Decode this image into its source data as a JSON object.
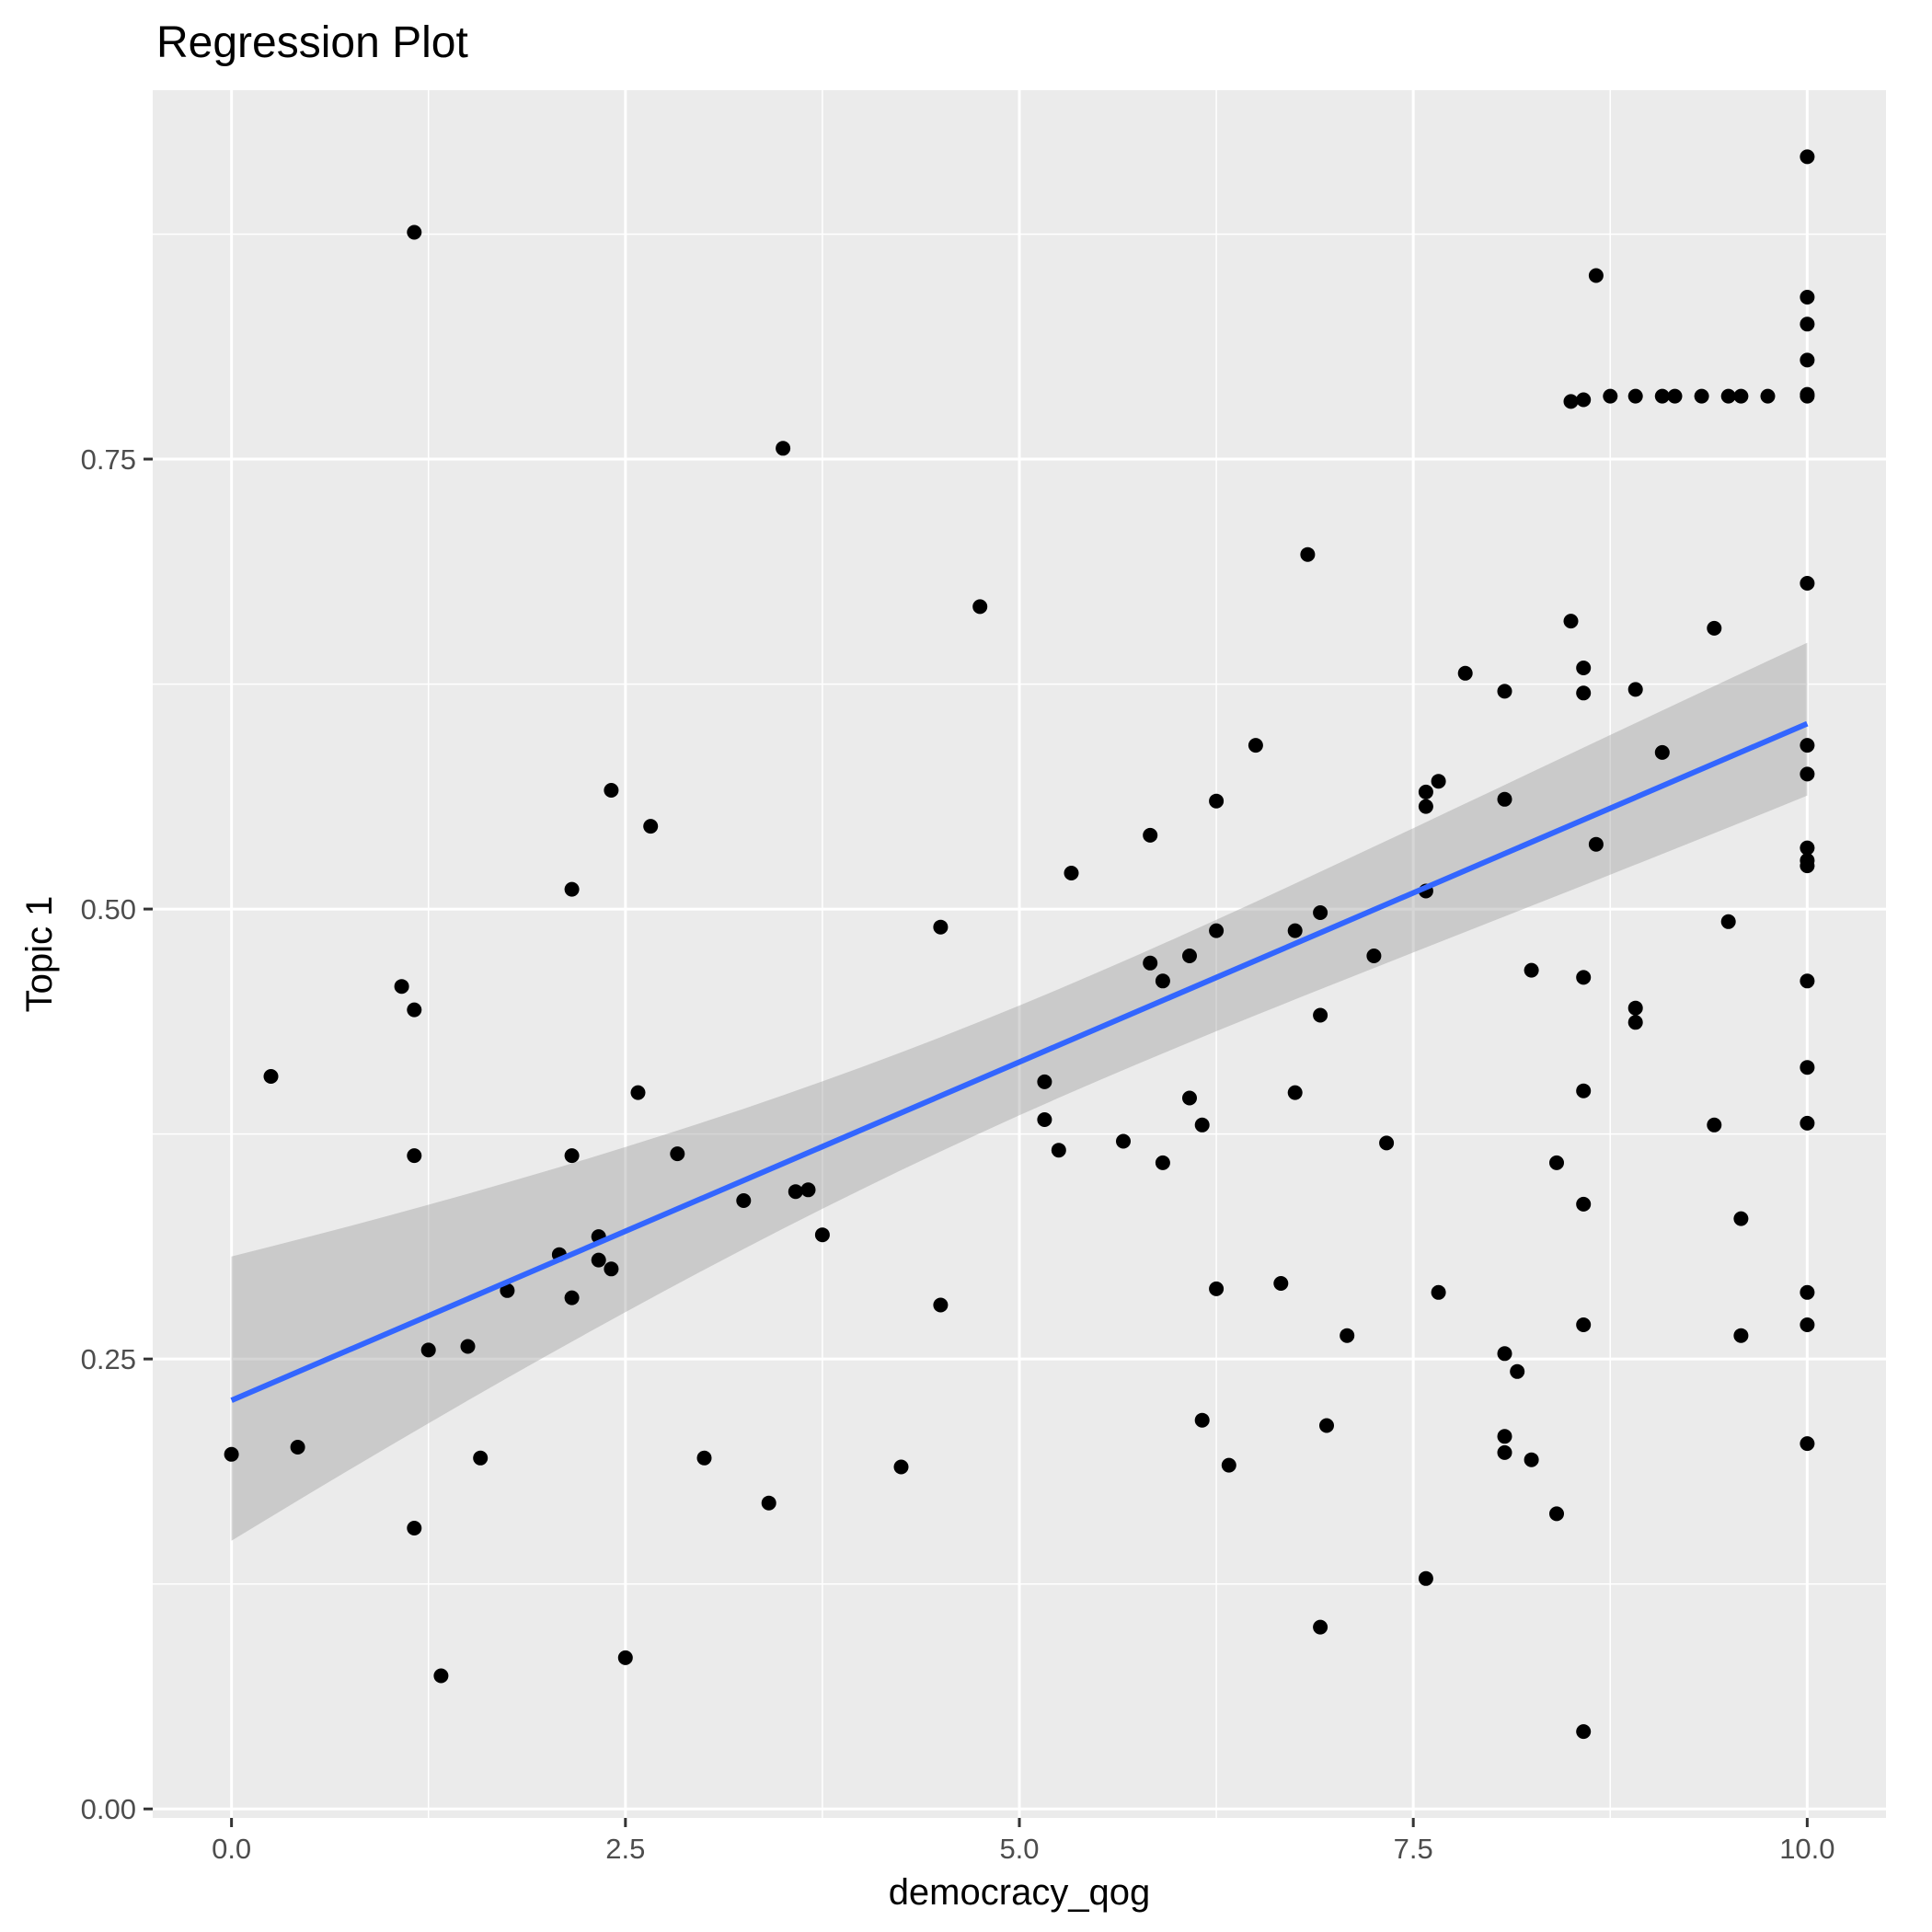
{
  "chart_data": {
    "type": "scatter",
    "title": "Regression Plot",
    "xlabel": "democracy_qog",
    "ylabel": "Topic 1",
    "xlim": [
      -0.5,
      10.5
    ],
    "ylim": [
      -0.005,
      0.955
    ],
    "x_ticks": [
      0,
      2.5,
      5,
      7.5,
      10
    ],
    "x_tick_labels": [
      "0.0",
      "2.5",
      "5.0",
      "7.5",
      "10.0"
    ],
    "y_ticks": [
      0,
      0.25,
      0.5,
      0.75
    ],
    "y_tick_labels": [
      "0.00",
      "0.25",
      "0.50",
      "0.75"
    ],
    "grid": true,
    "colors": {
      "panel": "#ebebeb",
      "grid": "#ffffff",
      "point": "#000000",
      "fit_line": "#3366ff",
      "band": "#999999"
    },
    "regression": {
      "x": [
        0,
        10
      ],
      "y": [
        0.227,
        0.603
      ],
      "ci_lower": [
        0.149,
        0.563
      ],
      "ci_upper": [
        0.307,
        0.648
      ]
    },
    "points": [
      [
        0.0,
        0.197
      ],
      [
        0.25,
        0.407
      ],
      [
        0.42,
        0.201
      ],
      [
        1.08,
        0.457
      ],
      [
        1.16,
        0.444
      ],
      [
        1.16,
        0.363
      ],
      [
        1.16,
        0.156
      ],
      [
        1.16,
        0.876
      ],
      [
        1.25,
        0.255
      ],
      [
        1.33,
        0.074
      ],
      [
        1.5,
        0.257
      ],
      [
        1.58,
        0.195
      ],
      [
        1.75,
        0.288
      ],
      [
        2.08,
        0.308
      ],
      [
        2.16,
        0.511
      ],
      [
        2.16,
        0.363
      ],
      [
        2.16,
        0.284
      ],
      [
        2.33,
        0.318
      ],
      [
        2.33,
        0.305
      ],
      [
        2.41,
        0.566
      ],
      [
        2.41,
        0.3
      ],
      [
        2.5,
        0.084
      ],
      [
        2.58,
        0.398
      ],
      [
        2.66,
        0.546
      ],
      [
        2.83,
        0.364
      ],
      [
        3.0,
        0.195
      ],
      [
        3.25,
        0.338
      ],
      [
        3.41,
        0.17
      ],
      [
        3.5,
        0.756
      ],
      [
        3.58,
        0.343
      ],
      [
        3.66,
        0.344
      ],
      [
        3.75,
        0.319
      ],
      [
        4.25,
        0.19
      ],
      [
        4.5,
        0.49
      ],
      [
        4.5,
        0.28
      ],
      [
        4.75,
        0.668
      ],
      [
        5.16,
        0.404
      ],
      [
        5.16,
        0.383
      ],
      [
        5.25,
        0.366
      ],
      [
        5.33,
        0.52
      ],
      [
        5.66,
        0.371
      ],
      [
        5.83,
        0.541
      ],
      [
        5.83,
        0.47
      ],
      [
        5.91,
        0.46
      ],
      [
        5.91,
        0.359
      ],
      [
        6.08,
        0.474
      ],
      [
        6.08,
        0.395
      ],
      [
        6.16,
        0.38
      ],
      [
        6.16,
        0.216
      ],
      [
        6.25,
        0.56
      ],
      [
        6.25,
        0.488
      ],
      [
        6.25,
        0.289
      ],
      [
        6.33,
        0.191
      ],
      [
        6.5,
        0.591
      ],
      [
        6.66,
        0.292
      ],
      [
        6.75,
        0.488
      ],
      [
        6.75,
        0.398
      ],
      [
        6.83,
        0.697
      ],
      [
        6.91,
        0.498
      ],
      [
        6.91,
        0.441
      ],
      [
        6.91,
        0.101
      ],
      [
        6.95,
        0.213
      ],
      [
        7.08,
        0.263
      ],
      [
        7.25,
        0.474
      ],
      [
        7.33,
        0.37
      ],
      [
        7.58,
        0.565
      ],
      [
        7.58,
        0.557
      ],
      [
        7.58,
        0.51
      ],
      [
        7.58,
        0.128
      ],
      [
        7.66,
        0.571
      ],
      [
        7.66,
        0.287
      ],
      [
        7.83,
        0.631
      ],
      [
        8.08,
        0.621
      ],
      [
        8.08,
        0.561
      ],
      [
        8.08,
        0.253
      ],
      [
        8.08,
        0.207
      ],
      [
        8.08,
        0.198
      ],
      [
        8.16,
        0.243
      ],
      [
        8.25,
        0.466
      ],
      [
        8.25,
        0.194
      ],
      [
        8.41,
        0.359
      ],
      [
        8.41,
        0.164
      ],
      [
        8.5,
        0.66
      ],
      [
        8.5,
        0.782
      ],
      [
        8.58,
        0.783
      ],
      [
        8.58,
        0.634
      ],
      [
        8.58,
        0.62
      ],
      [
        8.58,
        0.462
      ],
      [
        8.58,
        0.399
      ],
      [
        8.58,
        0.336
      ],
      [
        8.58,
        0.269
      ],
      [
        8.58,
        0.043
      ],
      [
        8.66,
        0.852
      ],
      [
        8.66,
        0.536
      ],
      [
        8.75,
        0.785
      ],
      [
        8.91,
        0.785
      ],
      [
        8.91,
        0.622
      ],
      [
        8.91,
        0.445
      ],
      [
        8.91,
        0.437
      ],
      [
        9.08,
        0.785
      ],
      [
        9.08,
        0.587
      ],
      [
        9.16,
        0.785
      ],
      [
        9.33,
        0.785
      ],
      [
        9.41,
        0.656
      ],
      [
        9.41,
        0.38
      ],
      [
        9.5,
        0.785
      ],
      [
        9.5,
        0.493
      ],
      [
        9.58,
        0.785
      ],
      [
        9.58,
        0.328
      ],
      [
        9.58,
        0.263
      ],
      [
        9.75,
        0.785
      ],
      [
        10.0,
        0.918
      ],
      [
        10.0,
        0.84
      ],
      [
        10.0,
        0.825
      ],
      [
        10.0,
        0.805
      ],
      [
        10.0,
        0.786
      ],
      [
        10.0,
        0.785
      ],
      [
        10.0,
        0.681
      ],
      [
        10.0,
        0.591
      ],
      [
        10.0,
        0.575
      ],
      [
        10.0,
        0.534
      ],
      [
        10.0,
        0.527
      ],
      [
        10.0,
        0.524
      ],
      [
        10.0,
        0.46
      ],
      [
        10.0,
        0.412
      ],
      [
        10.0,
        0.381
      ],
      [
        10.0,
        0.287
      ],
      [
        10.0,
        0.269
      ],
      [
        10.0,
        0.203
      ]
    ]
  }
}
